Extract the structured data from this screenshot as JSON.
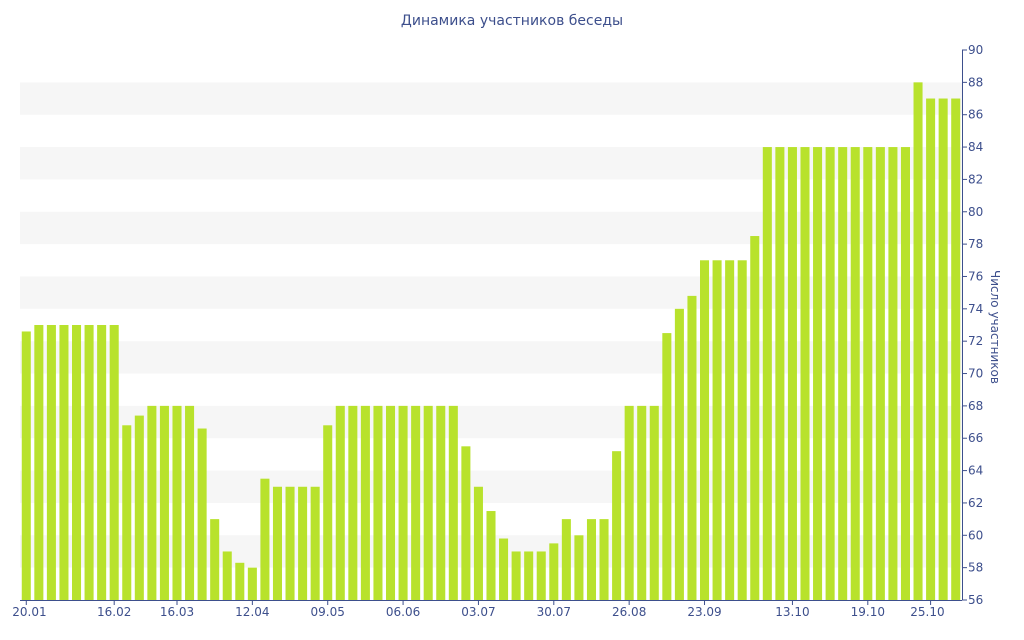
{
  "chart_data": {
    "type": "bar",
    "title": "Динамика участников беседы",
    "xlabel": "",
    "ylabel": "Число участников",
    "ylim": [
      56,
      90
    ],
    "yticks": [
      56,
      58,
      60,
      62,
      64,
      66,
      68,
      70,
      72,
      74,
      76,
      78,
      80,
      82,
      84,
      86,
      88,
      90
    ],
    "y_axis_position": "right",
    "grid": "alternating horizontal bands",
    "x_tick_labels": [
      "20.01",
      "16.02",
      "16.03",
      "12.04",
      "09.05",
      "06.06",
      "03.07",
      "30.07",
      "26.08",
      "23.09",
      "13.10",
      "19.10",
      "25.10"
    ],
    "x_tick_label_bar_index": [
      0,
      7,
      12,
      18,
      24,
      30,
      36,
      42,
      48,
      54,
      61,
      67,
      72
    ],
    "bar_color": "#b8e22c",
    "band_color": "#f6f6f6",
    "text_color": "#3d4f8c",
    "values": [
      72.6,
      73,
      73,
      73,
      73,
      73,
      73,
      73,
      66.8,
      67.4,
      68,
      68,
      68,
      68,
      66.6,
      61,
      59,
      58.3,
      58,
      63.5,
      63,
      63,
      63,
      63,
      66.8,
      68,
      68,
      68,
      68,
      68,
      68,
      68,
      68,
      68,
      68,
      65.5,
      63,
      61.5,
      59.8,
      59,
      59,
      59,
      59.5,
      61,
      60,
      61,
      61,
      65.2,
      68,
      68,
      68,
      72.5,
      74,
      74.8,
      77,
      77,
      77,
      77,
      78.5,
      84,
      84,
      84,
      84,
      84,
      84,
      84,
      84,
      84,
      84,
      84,
      84,
      88,
      87,
      87,
      87
    ]
  }
}
